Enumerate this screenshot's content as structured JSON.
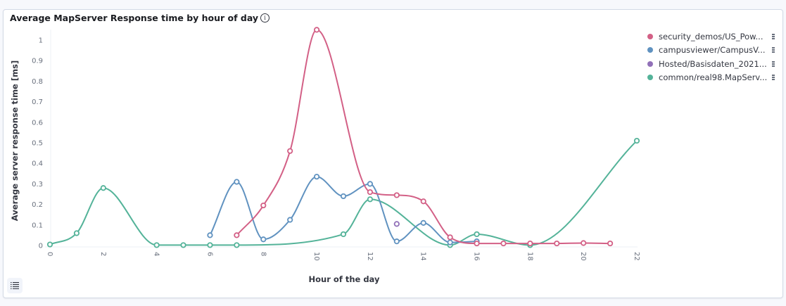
{
  "panel": {
    "title": "Average MapServer Response time by hour of day",
    "info_icon": "info-icon",
    "legend_toggle_icon": "list-icon"
  },
  "legend": [
    {
      "label": "security_demos/US_Pow...",
      "color": "#D36086"
    },
    {
      "label": "campusviewer/CampusV...",
      "color": "#6092C0"
    },
    {
      "label": "Hosted/Basisdaten_2021...",
      "color": "#9170B8"
    },
    {
      "label": "common/real98.MapServ...",
      "color": "#54B399"
    }
  ],
  "chart_data": {
    "type": "line",
    "title": "Average MapServer Response time by hour of day",
    "xlabel": "Hour of the day",
    "ylabel": "Average server response time [ms]",
    "xlim": [
      0,
      22
    ],
    "ylim": [
      0,
      1.05
    ],
    "x_ticks": [
      0,
      2,
      4,
      6,
      8,
      10,
      12,
      14,
      16,
      18,
      20,
      22
    ],
    "y_ticks": [
      0,
      0.1,
      0.2,
      0.3,
      0.4,
      0.5,
      0.6,
      0.7,
      0.8,
      0.9,
      1
    ],
    "y_tick_labels": [
      "0",
      "0.1",
      "0.2",
      "0.3",
      "0.4",
      "0.5",
      "0.6",
      "0.7",
      "0.8",
      "0.9",
      "1"
    ],
    "grid": false,
    "legend_position": "right",
    "series": [
      {
        "name": "security_demos/US_Pow...",
        "color": "#D36086",
        "points": [
          [
            7,
            0.05
          ],
          [
            8,
            0.195
          ],
          [
            9,
            0.46
          ],
          [
            10,
            1.05
          ],
          [
            12,
            0.26
          ],
          [
            13,
            0.245
          ],
          [
            14,
            0.215
          ],
          [
            15,
            0.04
          ],
          [
            16,
            0.01
          ],
          [
            17,
            0.01
          ],
          [
            18,
            0.01
          ],
          [
            19,
            0.01
          ],
          [
            20,
            0.012
          ],
          [
            21,
            0.01
          ]
        ]
      },
      {
        "name": "campusviewer/CampusV...",
        "color": "#6092C0",
        "points": [
          [
            6,
            0.05
          ],
          [
            7,
            0.31
          ],
          [
            8,
            0.03
          ],
          [
            9,
            0.125
          ],
          [
            10,
            0.335
          ],
          [
            11,
            0.24
          ],
          [
            12,
            0.3
          ],
          [
            13,
            0.02
          ],
          [
            14,
            0.11
          ],
          [
            15,
            0.015
          ],
          [
            16,
            0.02
          ]
        ]
      },
      {
        "name": "Hosted/Basisdaten_2021...",
        "color": "#9170B8",
        "points": [
          [
            13,
            0.105
          ]
        ]
      },
      {
        "name": "common/real98.MapServ...",
        "color": "#54B399",
        "points": [
          [
            0,
            0.005
          ],
          [
            1,
            0.06
          ],
          [
            2,
            0.28
          ],
          [
            4,
            0.002
          ],
          [
            5,
            0.002
          ],
          [
            6,
            0.002
          ],
          [
            7,
            0.002
          ],
          [
            11,
            0.055
          ],
          [
            12,
            0.225
          ],
          [
            15,
            0.002
          ],
          [
            16,
            0.055
          ],
          [
            18,
            0.002
          ],
          [
            22,
            0.51
          ]
        ]
      }
    ]
  }
}
